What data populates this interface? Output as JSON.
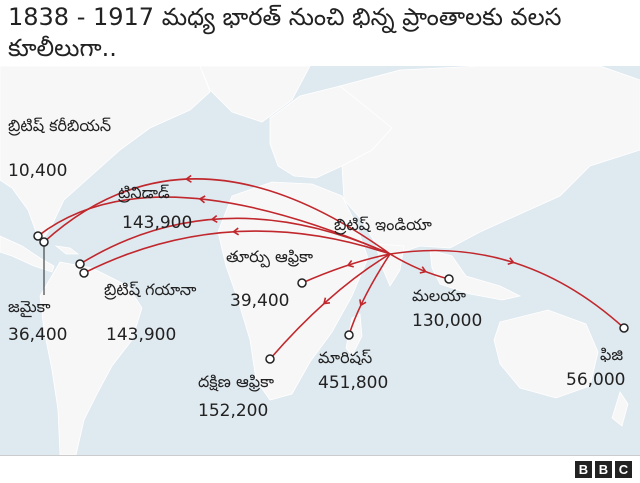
{
  "title": "1838 - 1917 మధ్య భారత్ నుంచి భిన్న ప్రాంతాలకు వలస కూలీలుగా..",
  "origin": {
    "name": "బ్రిటిష్ ఇండియా"
  },
  "destinations": [
    {
      "id": "british-caribbean",
      "name": "బ్రిటిష్ కరీబియన్",
      "count": "10,400"
    },
    {
      "id": "trinidad",
      "name": "ట్రినిడాడ్",
      "count": "143,900"
    },
    {
      "id": "jamaica",
      "name": "జమైకా",
      "count": "36,400"
    },
    {
      "id": "british-guiana",
      "name": "బ్రిటిష్ గయానా",
      "count": "143,900"
    },
    {
      "id": "east-africa",
      "name": "తూర్పు ఆఫ్రికా",
      "count": "39,400"
    },
    {
      "id": "south-africa",
      "name": "దక్షిణ ఆఫ్రికా",
      "count": "152,200"
    },
    {
      "id": "mauritius",
      "name": "మారిషస్",
      "count": "451,800"
    },
    {
      "id": "malaya",
      "name": "మలయా",
      "count": "130,000"
    },
    {
      "id": "fiji",
      "name": "ఫిజి",
      "count": "56,000"
    }
  ],
  "colors": {
    "route": "#c0282d",
    "land": "#f7f7f7",
    "sea": "#dfe9f0",
    "text": "#222222"
  },
  "logo": {
    "letters": [
      "B",
      "B",
      "C"
    ]
  }
}
